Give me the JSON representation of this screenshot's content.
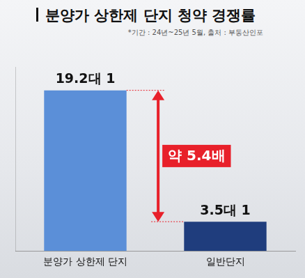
{
  "chart_data": {
    "type": "bar",
    "title": "분양가 상한제 단지 청약 경쟁률",
    "subtitle": "*기간 : 24년~25년 5월, 출처 : 부동산인포",
    "categories": [
      "분양가 상한제 단지",
      "일반단지"
    ],
    "values": [
      19.2,
      3.5
    ],
    "value_labels": [
      "19.2대 1",
      "3.5대 1"
    ],
    "colors": [
      "#5b8fd8",
      "#1f3d7d"
    ],
    "data_labels": true,
    "annotation": "약 5.4배",
    "ylim": [
      0,
      22
    ],
    "grid": false,
    "tick_labels": "x"
  }
}
